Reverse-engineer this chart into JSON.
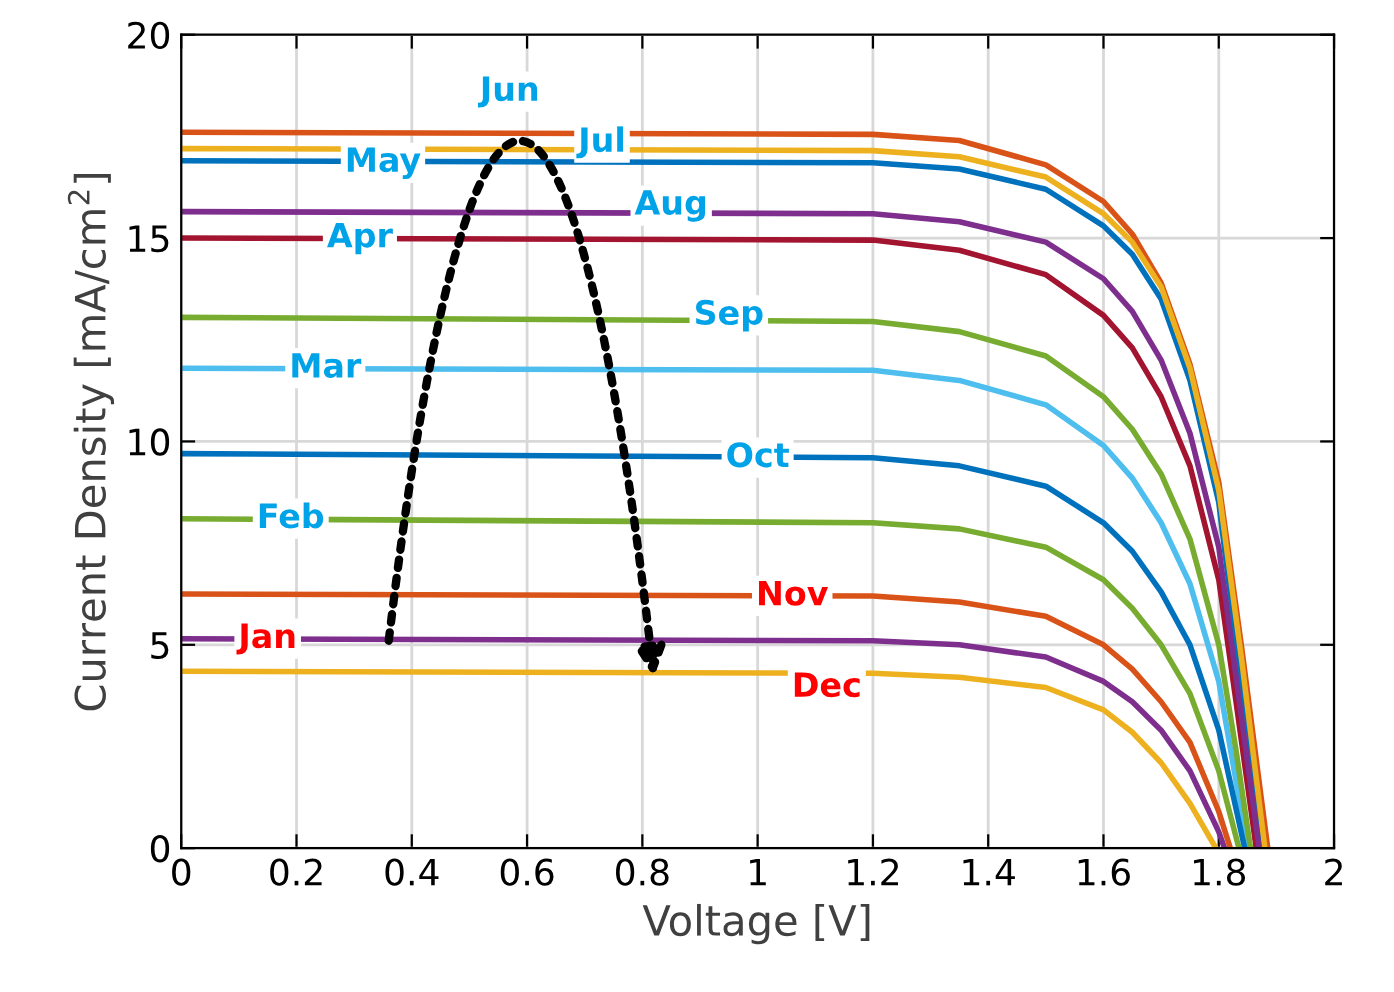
{
  "chart_data": {
    "type": "line",
    "xlabel": "Voltage [V]",
    "ylabel": "Current Density [mA/cm$^{2}$]",
    "xlim": [
      0,
      2
    ],
    "ylim": [
      0,
      20
    ],
    "xticks": [
      0,
      0.2,
      0.4,
      0.6,
      0.8,
      1,
      1.2,
      1.4,
      1.6,
      1.8,
      2
    ],
    "yticks": [
      0,
      5,
      10,
      15,
      20
    ],
    "grid": true,
    "marker": "none",
    "line_style": "solid",
    "series": [
      {
        "color": "#7e2f8e",
        "x": [
          0,
          1.2,
          1.35,
          1.5,
          1.6,
          1.65,
          1.7,
          1.75,
          1.8,
          1.81
        ],
        "values": [
          5.15,
          5.1,
          5.0,
          4.7,
          4.1,
          3.6,
          2.9,
          1.9,
          0.4,
          0
        ]
      },
      {
        "color": "#77ac30",
        "x": [
          0,
          1.2,
          1.35,
          1.5,
          1.6,
          1.65,
          1.7,
          1.75,
          1.8,
          1.835
        ],
        "values": [
          8.1,
          8.0,
          7.85,
          7.4,
          6.6,
          5.9,
          5.0,
          3.8,
          1.9,
          0
        ]
      },
      {
        "color": "#4dbeee",
        "x": [
          0,
          1.2,
          1.35,
          1.5,
          1.6,
          1.65,
          1.7,
          1.75,
          1.8,
          1.85
        ],
        "values": [
          11.8,
          11.75,
          11.5,
          10.9,
          9.9,
          9.1,
          8.0,
          6.5,
          4.1,
          0
        ]
      },
      {
        "color": "#a2142f",
        "x": [
          0,
          1.2,
          1.35,
          1.5,
          1.6,
          1.65,
          1.7,
          1.75,
          1.8,
          1.83,
          1.865
        ],
        "values": [
          15.0,
          14.95,
          14.7,
          14.1,
          13.1,
          12.3,
          11.1,
          9.4,
          6.6,
          3.6,
          0
        ]
      },
      {
        "color": "#0072bd",
        "x": [
          0,
          1.2,
          1.35,
          1.5,
          1.6,
          1.65,
          1.7,
          1.75,
          1.8,
          1.835,
          1.875
        ],
        "values": [
          16.9,
          16.85,
          16.7,
          16.2,
          15.3,
          14.6,
          13.5,
          11.5,
          8.5,
          4.5,
          0
        ]
      },
      {
        "color": "#d95319",
        "x": [
          0,
          1.2,
          1.35,
          1.5,
          1.6,
          1.65,
          1.7,
          1.75,
          1.8,
          1.84,
          1.885
        ],
        "values": [
          17.6,
          17.55,
          17.4,
          16.8,
          15.9,
          15.1,
          13.9,
          11.9,
          9.0,
          4.9,
          0
        ]
      },
      {
        "color": "#edb120",
        "x": [
          0,
          1.2,
          1.35,
          1.5,
          1.6,
          1.65,
          1.7,
          1.75,
          1.8,
          1.84,
          1.88
        ],
        "values": [
          17.2,
          17.15,
          17.0,
          16.5,
          15.6,
          14.9,
          13.8,
          11.8,
          8.8,
          4.6,
          0
        ]
      },
      {
        "color": "#7e2f8e",
        "x": [
          0,
          1.2,
          1.35,
          1.5,
          1.6,
          1.65,
          1.7,
          1.75,
          1.8,
          1.83,
          1.87
        ],
        "values": [
          15.65,
          15.6,
          15.4,
          14.9,
          14.0,
          13.2,
          12.0,
          10.2,
          7.4,
          4.2,
          0
        ]
      },
      {
        "color": "#77ac30",
        "x": [
          0,
          1.2,
          1.35,
          1.5,
          1.6,
          1.65,
          1.7,
          1.75,
          1.8,
          1.83,
          1.855
        ],
        "values": [
          13.05,
          12.95,
          12.7,
          12.1,
          11.1,
          10.3,
          9.2,
          7.6,
          5.0,
          2.4,
          0
        ]
      },
      {
        "color": "#0072bd",
        "x": [
          0,
          1.2,
          1.35,
          1.5,
          1.6,
          1.65,
          1.7,
          1.75,
          1.8,
          1.845
        ],
        "values": [
          9.7,
          9.6,
          9.4,
          8.9,
          8.0,
          7.3,
          6.3,
          5.0,
          2.9,
          0
        ]
      },
      {
        "color": "#d95319",
        "x": [
          0,
          1.2,
          1.35,
          1.5,
          1.6,
          1.65,
          1.7,
          1.75,
          1.8,
          1.82
        ],
        "values": [
          6.25,
          6.2,
          6.05,
          5.7,
          5.0,
          4.4,
          3.6,
          2.6,
          0.9,
          0
        ]
      },
      {
        "color": "#edb120",
        "x": [
          0,
          1.2,
          1.35,
          1.5,
          1.6,
          1.65,
          1.7,
          1.75,
          1.795
        ],
        "values": [
          4.35,
          4.3,
          4.2,
          3.95,
          3.4,
          2.85,
          2.1,
          1.1,
          0
        ]
      }
    ],
    "annotations": [
      {
        "text": "Jan",
        "x": 0.15,
        "y": 5.15
      },
      {
        "text": "Feb",
        "x": 0.19,
        "y": 8.1
      },
      {
        "text": "Mar",
        "x": 0.25,
        "y": 11.8
      },
      {
        "text": "Apr",
        "x": 0.31,
        "y": 15.0
      },
      {
        "text": "May",
        "x": 0.35,
        "y": 16.85
      },
      {
        "text": "Jun",
        "x": 0.57,
        "y": 18.6
      },
      {
        "text": "Jul",
        "x": 0.73,
        "y": 17.35
      },
      {
        "text": "Aug",
        "x": 0.85,
        "y": 15.8
      },
      {
        "text": "Sep",
        "x": 0.95,
        "y": 13.1
      },
      {
        "text": "Oct",
        "x": 1.0,
        "y": 9.6
      },
      {
        "text": "Nov",
        "x": 1.06,
        "y": 6.2
      },
      {
        "text": "Dec",
        "x": 1.12,
        "y": 3.95
      }
    ]
  }
}
